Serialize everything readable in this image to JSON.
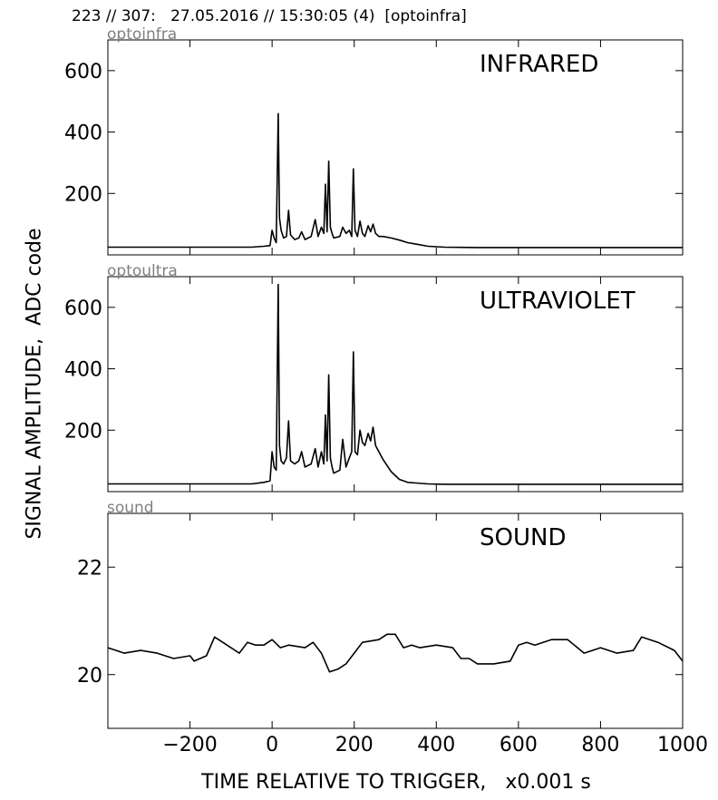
{
  "header": {
    "title": "223 // 307:   27.05.2016 // 15:30:05 (4)  [optoinfra]"
  },
  "axes": {
    "ylabel": "SIGNAL AMPLITUDE,  ADC code",
    "xlabel": "TIME RELATIVE TO TRIGGER,   x0.001 s"
  },
  "chart_data": [
    {
      "type": "line",
      "channel": "optoinfra",
      "title": "INFRARED",
      "xlim": [
        -400,
        1000
      ],
      "ylim": [
        0,
        700
      ],
      "x_ticks": [
        -200,
        0,
        200,
        400,
        600,
        800,
        1000
      ],
      "y_ticks": [
        200,
        400,
        600
      ],
      "grid": false,
      "x": [
        -400,
        -50,
        -20,
        -5,
        0,
        5,
        10,
        15,
        18,
        22,
        28,
        35,
        40,
        45,
        55,
        65,
        72,
        80,
        95,
        105,
        112,
        120,
        126,
        130,
        134,
        138,
        142,
        146,
        150,
        165,
        172,
        180,
        188,
        194,
        198,
        202,
        208,
        214,
        220,
        226,
        234,
        240,
        246,
        252,
        260,
        270,
        290,
        310,
        330,
        350,
        380,
        420,
        500,
        1000
      ],
      "y": [
        25,
        25,
        28,
        30,
        80,
        55,
        40,
        460,
        120,
        80,
        55,
        60,
        145,
        65,
        50,
        55,
        75,
        50,
        60,
        115,
        60,
        90,
        70,
        230,
        75,
        305,
        90,
        70,
        55,
        60,
        90,
        70,
        80,
        60,
        280,
        80,
        60,
        110,
        70,
        60,
        95,
        75,
        100,
        70,
        60,
        60,
        55,
        48,
        40,
        35,
        28,
        25,
        24,
        24
      ]
    },
    {
      "type": "line",
      "channel": "optoultra",
      "title": "ULTRAVIOLET",
      "xlim": [
        -400,
        1000
      ],
      "ylim": [
        0,
        700
      ],
      "x_ticks": [
        -200,
        0,
        200,
        400,
        600,
        800,
        1000
      ],
      "y_ticks": [
        200,
        400,
        600
      ],
      "grid": false,
      "x": [
        -400,
        -50,
        -20,
        -5,
        0,
        5,
        10,
        15,
        18,
        22,
        28,
        35,
        40,
        45,
        55,
        65,
        72,
        80,
        95,
        105,
        112,
        120,
        126,
        130,
        134,
        138,
        142,
        146,
        150,
        165,
        172,
        180,
        188,
        194,
        198,
        202,
        208,
        214,
        220,
        226,
        234,
        240,
        246,
        252,
        260,
        270,
        290,
        310,
        330,
        350,
        380,
        420,
        500,
        1000
      ],
      "y": [
        25,
        25,
        30,
        35,
        130,
        80,
        70,
        675,
        150,
        100,
        90,
        110,
        230,
        100,
        90,
        100,
        130,
        80,
        90,
        140,
        80,
        130,
        90,
        250,
        100,
        380,
        110,
        80,
        60,
        70,
        170,
        80,
        110,
        130,
        455,
        130,
        120,
        200,
        160,
        150,
        190,
        165,
        210,
        150,
        130,
        105,
        65,
        40,
        30,
        28,
        25,
        24,
        24,
        24
      ]
    },
    {
      "type": "line",
      "channel": "sound",
      "title": "SOUND",
      "xlim": [
        -400,
        1000
      ],
      "ylim": [
        19,
        23
      ],
      "x_ticks": [
        -200,
        0,
        200,
        400,
        600,
        800,
        1000
      ],
      "y_ticks": [
        20,
        22
      ],
      "grid": false,
      "x": [
        -400,
        -360,
        -320,
        -280,
        -240,
        -200,
        -190,
        -160,
        -140,
        -120,
        -80,
        -60,
        -40,
        -20,
        0,
        20,
        40,
        80,
        100,
        120,
        140,
        160,
        180,
        200,
        220,
        260,
        280,
        300,
        320,
        340,
        360,
        400,
        440,
        460,
        480,
        500,
        520,
        540,
        580,
        600,
        620,
        640,
        680,
        720,
        760,
        780,
        800,
        840,
        880,
        900,
        920,
        940,
        980,
        1000
      ],
      "y": [
        20.5,
        20.4,
        20.45,
        20.4,
        20.3,
        20.35,
        20.25,
        20.35,
        20.7,
        20.6,
        20.4,
        20.6,
        20.55,
        20.55,
        20.65,
        20.5,
        20.55,
        20.5,
        20.6,
        20.4,
        20.05,
        20.1,
        20.2,
        20.4,
        20.6,
        20.65,
        20.75,
        20.75,
        20.5,
        20.55,
        20.5,
        20.55,
        20.5,
        20.3,
        20.3,
        20.2,
        20.2,
        20.2,
        20.25,
        20.55,
        20.6,
        20.55,
        20.65,
        20.65,
        20.4,
        20.45,
        20.5,
        20.4,
        20.45,
        20.7,
        20.65,
        20.6,
        20.45,
        20.25
      ]
    }
  ]
}
